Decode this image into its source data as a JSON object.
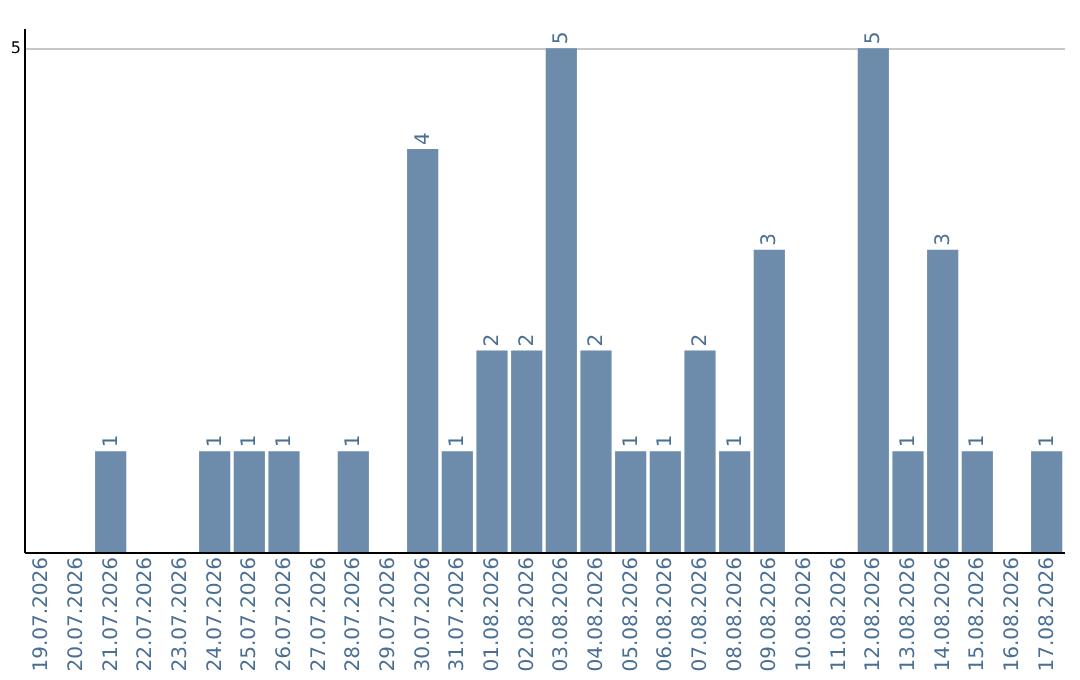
{
  "chart_data": {
    "type": "bar",
    "categories": [
      "19.07.2026",
      "20.07.2026",
      "21.07.2026",
      "22.07.2026",
      "23.07.2026",
      "24.07.2026",
      "25.07.2026",
      "26.07.2026",
      "27.07.2026",
      "28.07.2026",
      "29.07.2026",
      "30.07.2026",
      "31.07.2026",
      "01.08.2026",
      "02.08.2026",
      "03.08.2026",
      "04.08.2026",
      "05.08.2026",
      "06.08.2026",
      "07.08.2026",
      "08.08.2026",
      "09.08.2026",
      "10.08.2026",
      "11.08.2026",
      "12.08.2026",
      "13.08.2026",
      "14.08.2026",
      "15.08.2026",
      "16.08.2026",
      "17.08.2026"
    ],
    "values": [
      0,
      0,
      1,
      0,
      0,
      1,
      1,
      1,
      0,
      1,
      0,
      4,
      1,
      2,
      2,
      5,
      2,
      1,
      1,
      2,
      1,
      3,
      0,
      0,
      5,
      1,
      3,
      1,
      0,
      1
    ],
    "value_labels": [
      null,
      null,
      "1",
      null,
      null,
      "1",
      "1",
      "1",
      null,
      "1",
      null,
      "4",
      "1",
      "2",
      "2",
      "5",
      "2",
      "1",
      "1",
      "2",
      "1",
      "3",
      null,
      null,
      "5",
      "1",
      "3",
      "1",
      null,
      "1"
    ],
    "color": "#6d8cab",
    "ylim": [
      0,
      5.2
    ],
    "yticks": [
      5
    ],
    "grid": "y"
  }
}
